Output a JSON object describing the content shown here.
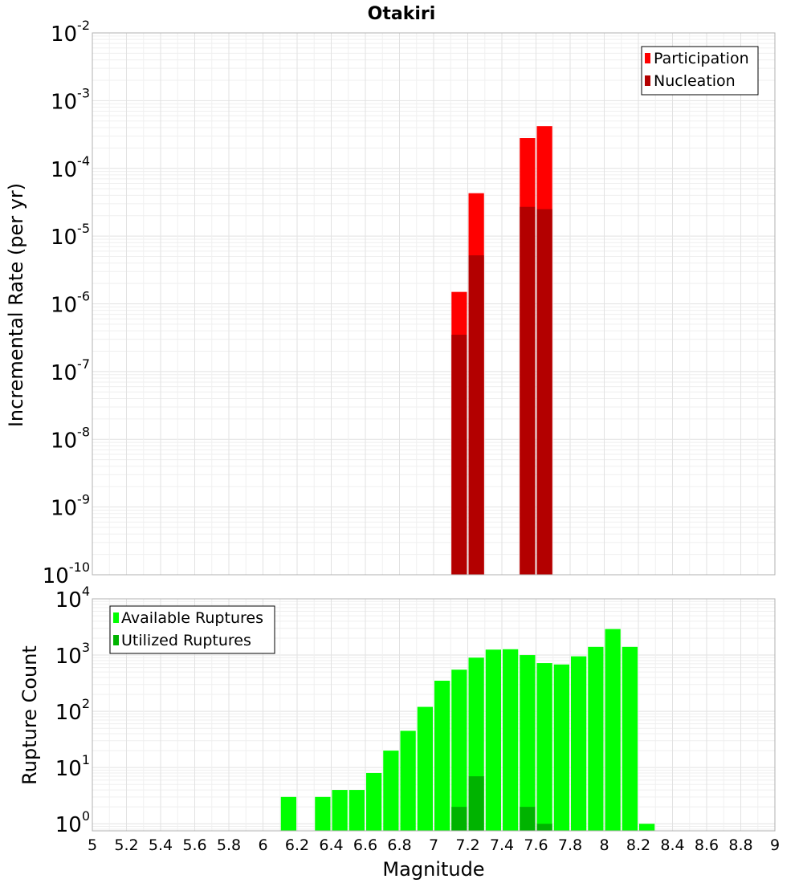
{
  "title": "Otakiri",
  "colors": {
    "participation": "#ff0000",
    "nucleation": "#b30000",
    "available": "#00ff00",
    "utilized": "#00b300"
  },
  "chart_data": [
    {
      "type": "bar",
      "title": "Otakiri",
      "xlabel": "",
      "ylabel": "Incremental Rate (per yr)",
      "xlim": [
        5,
        9
      ],
      "ylim": [
        1e-10,
        0.01
      ],
      "yscale": "log",
      "ytick_bases": [
        "10",
        "10",
        "10",
        "10",
        "10",
        "10",
        "10",
        "10",
        "10"
      ],
      "ytick_exponents": [
        "-10",
        "-9",
        "-8",
        "-7",
        "-6",
        "-5",
        "-4",
        "-3",
        "-2"
      ],
      "ytick_values": [
        1e-10,
        1e-09,
        1e-08,
        1e-07,
        1e-06,
        1e-05,
        0.0001,
        0.001,
        0.01
      ],
      "grid": true,
      "legend": {
        "position": "top-right",
        "entries": [
          "Participation",
          "Nucleation"
        ]
      },
      "series": [
        {
          "name": "Participation",
          "x": [
            7.15,
            7.25,
            7.55,
            7.65
          ],
          "values": [
            1.5e-06,
            4.3e-05,
            0.00028,
            0.00042
          ]
        },
        {
          "name": "Nucleation",
          "x": [
            7.15,
            7.25,
            7.55,
            7.65
          ],
          "values": [
            3.5e-07,
            5.2e-06,
            2.7e-05,
            2.5e-05
          ]
        }
      ]
    },
    {
      "type": "bar",
      "xlabel": "Magnitude",
      "ylabel": "Rupture Count",
      "xlim": [
        5,
        9
      ],
      "ylim": [
        0.75,
        10000
      ],
      "yscale": "log",
      "ytick_bases": [
        "10",
        "10",
        "10",
        "10",
        "10"
      ],
      "ytick_exponents": [
        "0",
        "1",
        "2",
        "3",
        "4"
      ],
      "ytick_values": [
        1,
        10,
        100,
        1000,
        10000
      ],
      "xticks": [
        "5",
        "5.2",
        "5.4",
        "5.6",
        "5.8",
        "6",
        "6.2",
        "6.4",
        "6.6",
        "6.8",
        "7",
        "7.2",
        "7.4",
        "7.6",
        "7.8",
        "8",
        "8.2",
        "8.4",
        "8.6",
        "8.8",
        "9"
      ],
      "grid": true,
      "legend": {
        "position": "top-left",
        "entries": [
          "Available Ruptures",
          "Utilized Ruptures"
        ]
      },
      "series": [
        {
          "name": "Available Ruptures",
          "x": [
            6.15,
            6.35,
            6.45,
            6.55,
            6.65,
            6.75,
            6.85,
            6.95,
            7.05,
            7.15,
            7.25,
            7.35,
            7.45,
            7.55,
            7.65,
            7.75,
            7.85,
            7.95,
            8.05,
            8.15,
            8.25
          ],
          "values": [
            3,
            3,
            4,
            4,
            8,
            20,
            45,
            120,
            350,
            550,
            900,
            1250,
            1270,
            1000,
            720,
            680,
            950,
            1400,
            2900,
            1400,
            1
          ]
        },
        {
          "name": "Utilized Ruptures",
          "x": [
            7.15,
            7.25,
            7.55,
            7.65
          ],
          "values": [
            2,
            7,
            2,
            1
          ]
        }
      ]
    }
  ]
}
